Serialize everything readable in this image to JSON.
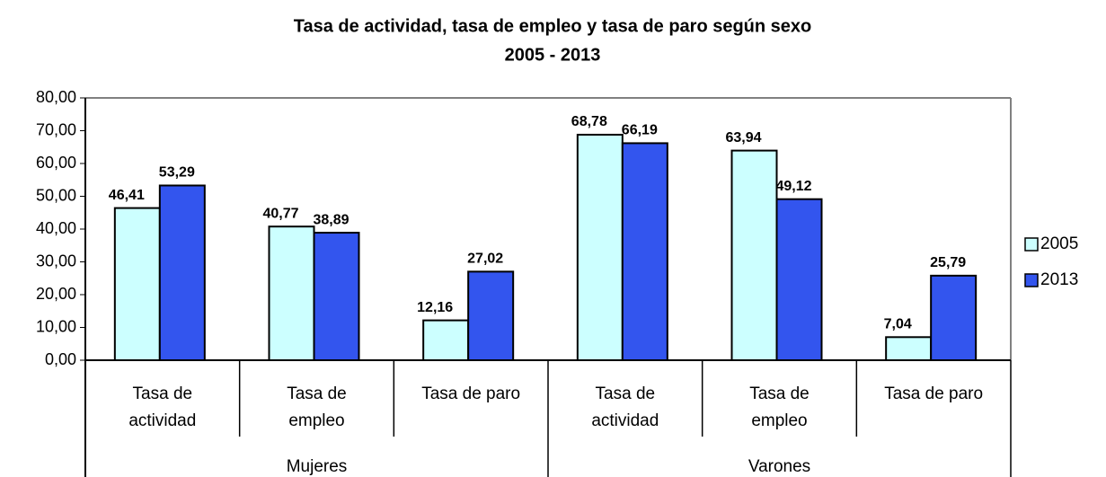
{
  "chart_data": {
    "type": "bar",
    "title": "Tasa de actividad, tasa de empleo y tasa de paro según sexo",
    "subtitle": "2005 - 2013",
    "categories": [
      "Tasa de actividad",
      "Tasa de empleo",
      "Tasa de paro",
      "Tasa de actividad",
      "Tasa de empleo",
      "Tasa de paro"
    ],
    "groups": [
      "Mujeres",
      "Varones"
    ],
    "series": [
      {
        "name": "2005",
        "color": "#ccffff",
        "values": [
          46.41,
          40.77,
          12.16,
          68.78,
          63.94,
          7.04
        ],
        "value_labels": [
          "46,41",
          "40,77",
          "12,16",
          "68,78",
          "63,94",
          "7,04"
        ]
      },
      {
        "name": "2013",
        "color": "#3355ee",
        "values": [
          53.29,
          38.89,
          27.02,
          66.19,
          49.12,
          25.79
        ],
        "value_labels": [
          "53,29",
          "38,89",
          "27,02",
          "66,19",
          "49,12",
          "25,79"
        ]
      }
    ],
    "ylim": [
      0,
      80
    ],
    "yticks": [
      {
        "value": 0,
        "label": "0,00"
      },
      {
        "value": 10,
        "label": "10,00"
      },
      {
        "value": 20,
        "label": "20,00"
      },
      {
        "value": 30,
        "label": "30,00"
      },
      {
        "value": 40,
        "label": "40,00"
      },
      {
        "value": 50,
        "label": "50,00"
      },
      {
        "value": 60,
        "label": "60,00"
      },
      {
        "value": 70,
        "label": "70,00"
      },
      {
        "value": 80,
        "label": "80,00"
      }
    ],
    "grid": false,
    "legend": "right"
  }
}
